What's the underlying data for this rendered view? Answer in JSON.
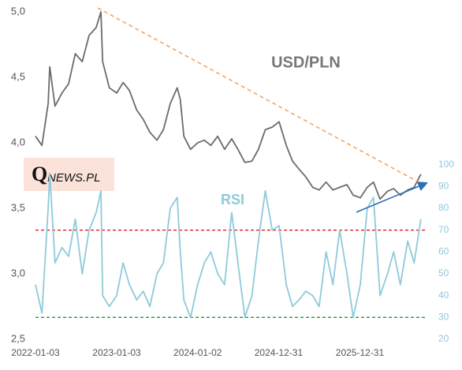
{
  "chart_data": {
    "type": "line",
    "title": "USD/PLN",
    "secondary_title": "RSI",
    "logo": {
      "initial": "Q",
      "rest": "NEWS.PL"
    },
    "x": [
      "2022-01-03",
      "2022-02-01",
      "2022-03-01",
      "2022-03-08",
      "2022-04-01",
      "2022-05-02",
      "2022-06-01",
      "2022-07-01",
      "2022-08-01",
      "2022-09-01",
      "2022-10-03",
      "2022-10-24",
      "2022-11-01",
      "2022-12-01",
      "2023-01-03",
      "2023-02-01",
      "2023-03-01",
      "2023-04-03",
      "2023-05-02",
      "2023-06-01",
      "2023-07-03",
      "2023-08-01",
      "2023-09-01",
      "2023-10-02",
      "2023-10-16",
      "2023-11-01",
      "2023-12-01",
      "2024-01-02",
      "2024-02-01",
      "2024-03-01",
      "2024-04-01",
      "2024-05-02",
      "2024-06-03",
      "2024-07-01",
      "2024-08-01",
      "2024-09-02",
      "2024-10-01",
      "2024-11-01",
      "2024-12-02",
      "2025-01-02",
      "2025-02-03",
      "2025-03-03",
      "2025-04-01",
      "2025-05-02",
      "2025-06-02",
      "2025-07-01",
      "2025-08-01",
      "2025-09-01",
      "2025-10-01",
      "2025-11-03",
      "2025-12-01",
      "2026-01-02",
      "2026-02-02",
      "2026-03-02",
      "2026-04-01",
      "2026-05-04",
      "2026-06-01",
      "2026-07-01",
      "2026-08-03",
      "2026-09-01",
      "2026-10-01"
    ],
    "series": [
      {
        "name": "USD/PLN",
        "color": "#6b6b6b",
        "axis": "y",
        "values": [
          4.05,
          3.98,
          4.3,
          4.58,
          4.28,
          4.38,
          4.45,
          4.68,
          4.62,
          4.82,
          4.88,
          5.0,
          4.62,
          4.42,
          4.38,
          4.46,
          4.4,
          4.25,
          4.18,
          4.08,
          4.02,
          4.1,
          4.3,
          4.42,
          4.33,
          4.05,
          3.95,
          4.0,
          4.02,
          3.98,
          4.05,
          3.95,
          4.03,
          3.95,
          3.85,
          3.86,
          3.95,
          4.1,
          4.12,
          4.16,
          3.98,
          3.86,
          3.8,
          3.74,
          3.66,
          3.64,
          3.7,
          3.64,
          3.66,
          3.68,
          3.6,
          3.58,
          3.66,
          3.7,
          3.57,
          3.63,
          3.65,
          3.6,
          3.64,
          3.66,
          3.76
        ]
      },
      {
        "name": "RSI",
        "color": "#8ecadb",
        "axis": "y2",
        "values": [
          45,
          32,
          80,
          96,
          55,
          62,
          58,
          75,
          50,
          70,
          78,
          88,
          40,
          35,
          40,
          55,
          45,
          38,
          42,
          35,
          50,
          55,
          80,
          85,
          60,
          38,
          30,
          45,
          55,
          60,
          50,
          45,
          78,
          55,
          30,
          40,
          65,
          88,
          70,
          72,
          45,
          35,
          38,
          42,
          40,
          35,
          60,
          45,
          70,
          50,
          30,
          45,
          80,
          85,
          40,
          50,
          60,
          45,
          65,
          55,
          75
        ]
      }
    ],
    "xlim": [
      "2022-01-03",
      "2026-10-23"
    ],
    "xticks": [
      "2022-01-03",
      "2023-01-03",
      "2024-01-02",
      "2024-12-31",
      "2025-12-31"
    ],
    "ylim": [
      2.5,
      5.0
    ],
    "yticks": [
      {
        "value": 2.5,
        "label": "2,5"
      },
      {
        "value": 3.0,
        "label": "3,0"
      },
      {
        "value": 3.5,
        "label": "3,5"
      },
      {
        "value": 4.0,
        "label": "4,0"
      },
      {
        "value": 4.5,
        "label": "4,5"
      },
      {
        "value": 5.0,
        "label": "5,0"
      }
    ],
    "y2lim": [
      20,
      170
    ],
    "y2ticks": [
      20,
      30,
      40,
      50,
      60,
      70,
      80,
      90,
      100
    ],
    "reference_lines": [
      {
        "axis": "y2",
        "value": 70,
        "color": "#e02020"
      },
      {
        "axis": "y2",
        "value": 30,
        "color": "#1f9a3a"
      }
    ],
    "trendlines": [
      {
        "color": "#f4a460",
        "style": "dashed",
        "x": [
          "2022-10-10",
          "2026-10-23"
        ],
        "y": [
          5.03,
          3.67
        ]
      },
      {
        "color": "#2e6fb5",
        "style": "arrow",
        "x": [
          "2025-12-15",
          "2026-10-23"
        ],
        "y": [
          3.47,
          3.69
        ]
      }
    ],
    "grid": false
  }
}
